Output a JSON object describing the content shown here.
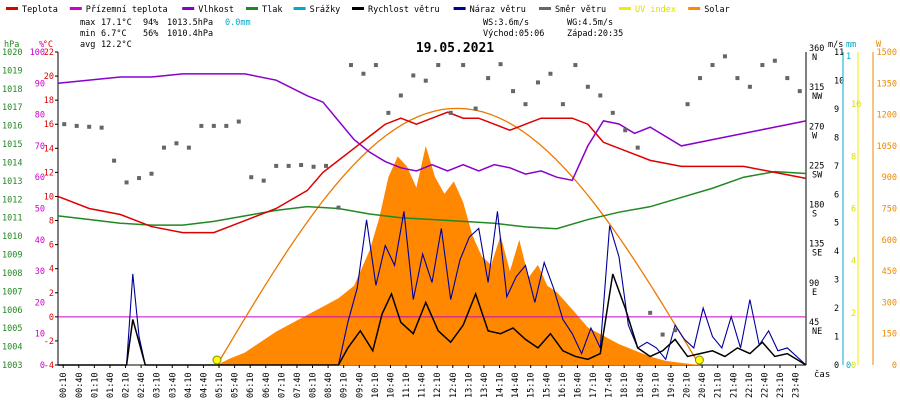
{
  "title": "19.05.2021",
  "legend": [
    {
      "label": "Teplota",
      "color": "#dd0000"
    },
    {
      "label": "Přízemní teplota",
      "color": "#cc00cc"
    },
    {
      "label": "Vlhkost",
      "color": "#8800cc"
    },
    {
      "label": "Tlak",
      "color": "#228822"
    },
    {
      "label": "Srážky",
      "color": "#00aacc"
    },
    {
      "label": "Rychlost větru",
      "color": "#000000"
    },
    {
      "label": "Náraz větru",
      "color": "#000099"
    },
    {
      "label": "Směr větru",
      "color": "#666666"
    },
    {
      "label": "UV index",
      "color": "#eeee00"
    },
    {
      "label": "Solar",
      "color": "#ff8800"
    }
  ],
  "stats": {
    "max_label": "max",
    "max_temp": "17.1°C",
    "max_hum": "94%",
    "max_press": "1013.5hPa",
    "precip": "0.0mm",
    "min_label": "min",
    "min_temp": "6.7°C",
    "min_hum": "56%",
    "min_press": "1010.4hPa",
    "avg_label": "avg",
    "avg_temp": "12.2°C",
    "ws": "WS:3.6m/s",
    "wg": "WG:4.5m/s",
    "sunrise": "Východ:05:06",
    "sunset": "Západ:20:35"
  },
  "axis_units": {
    "hpa": "hPa",
    "pct": "%",
    "degc": "°C",
    "ms": "m/s",
    "mm": "mm",
    "w": "W",
    "time": "čas"
  },
  "colors": {
    "temp": "#dd0000",
    "humidity": "#8800cc",
    "pressure": "#228822",
    "wind_speed": "#000000",
    "gust": "#000099",
    "direction": "#666666",
    "solar_fill": "#ff8800",
    "solar_curve": "#ee7700",
    "rain_axis": "#00aacc",
    "solar_axis": "#ee8800",
    "uv": "#eeee00",
    "zero_line": "#cc00cc",
    "pressure_axis": "#228822",
    "pct_axis": "#cc00cc",
    "temp_axis": "#dd0000"
  },
  "chart_data": {
    "type": "line",
    "x_ticks": [
      "00:10",
      "00:40",
      "01:10",
      "01:40",
      "02:10",
      "02:40",
      "03:10",
      "03:40",
      "04:10",
      "04:40",
      "05:10",
      "05:40",
      "06:10",
      "06:40",
      "07:10",
      "07:40",
      "08:10",
      "08:40",
      "09:10",
      "09:40",
      "10:10",
      "10:40",
      "11:10",
      "11:40",
      "12:10",
      "12:40",
      "13:10",
      "13:40",
      "14:10",
      "14:40",
      "15:10",
      "15:40",
      "16:10",
      "16:40",
      "17:10",
      "17:40",
      "18:10",
      "18:40",
      "19:10",
      "19:40",
      "20:10",
      "20:40",
      "21:10",
      "21:40",
      "22:10",
      "22:40",
      "23:10",
      "23:40"
    ],
    "y_ticks": {
      "pressure_hpa": [
        1003,
        1004,
        1005,
        1006,
        1007,
        1008,
        1009,
        1010,
        1011,
        1012,
        1013,
        1014,
        1015,
        1016,
        1017,
        1018,
        1019,
        1020
      ],
      "humidity_pct": [
        0,
        10,
        20,
        30,
        40,
        50,
        60,
        70,
        80,
        90,
        100
      ],
      "temperature_c": [
        -4,
        -2,
        0,
        2,
        4,
        6,
        8,
        10,
        12,
        14,
        16,
        18,
        20,
        22
      ],
      "wind_ms": [
        0,
        1,
        2,
        3,
        4,
        5,
        6,
        7,
        8,
        9,
        10,
        11
      ],
      "rain_mm": [
        0,
        1
      ],
      "solar_w": [
        0,
        150,
        300,
        450,
        600,
        750,
        900,
        1050,
        1200,
        1350,
        1500
      ],
      "uv_index": [
        0,
        2,
        4,
        6,
        8,
        10
      ],
      "direction": [
        {
          "v": 0,
          "l": ""
        },
        {
          "v": 45,
          "l": "45\nNE"
        },
        {
          "v": 90,
          "l": "90\nE"
        },
        {
          "v": 135,
          "l": "135\nSE"
        },
        {
          "v": 180,
          "l": "180\nS"
        },
        {
          "v": 225,
          "l": "225\nSW"
        },
        {
          "v": 270,
          "l": "270\nW"
        },
        {
          "v": 315,
          "l": "315\nNW"
        },
        {
          "v": 360,
          "l": "360\nN"
        }
      ]
    },
    "ranges": {
      "temp": [
        -4,
        22
      ],
      "pct": [
        0,
        100
      ],
      "pressure": [
        1003,
        1020
      ],
      "wind": [
        0,
        11
      ],
      "solar": [
        0,
        1500
      ],
      "direction": [
        0,
        360
      ]
    },
    "grid": false,
    "series": [
      {
        "name": "Teplota",
        "unit": "°C",
        "hours": [
          0,
          1,
          2,
          3,
          4,
          5,
          6,
          7,
          8,
          8.5,
          9,
          9.5,
          10,
          10.5,
          11,
          11.5,
          12,
          12.5,
          13,
          13.5,
          14,
          14.5,
          15,
          15.5,
          16,
          16.5,
          17,
          17.5,
          18,
          18.5,
          19,
          20,
          21,
          22,
          23,
          24
        ],
        "values": [
          10,
          9,
          8.5,
          7.5,
          7,
          7,
          8,
          9,
          10.5,
          12,
          13,
          14,
          15,
          16,
          16.5,
          16,
          16.5,
          17,
          16.5,
          16.5,
          16,
          15.5,
          16,
          16.5,
          16.5,
          16.5,
          16,
          14.5,
          14,
          13.5,
          13,
          12.5,
          12.5,
          12.5,
          12,
          11.5
        ]
      },
      {
        "name": "Vlhkost",
        "unit": "%",
        "hours": [
          0,
          1,
          2,
          3,
          4,
          5,
          6,
          7,
          8,
          8.5,
          9,
          9.5,
          10,
          10.5,
          11,
          11.5,
          12,
          12.5,
          13,
          13.5,
          14,
          14.5,
          15,
          15.5,
          16,
          16.5,
          17,
          17.5,
          18,
          18.5,
          19,
          20,
          21,
          22,
          23,
          24
        ],
        "values": [
          90,
          91,
          92,
          92,
          93,
          93,
          93,
          91,
          86,
          84,
          78,
          72,
          68,
          65,
          63,
          62,
          64,
          62,
          64,
          62,
          64,
          63,
          61,
          62,
          60,
          59,
          70,
          78,
          77,
          74,
          76,
          70,
          72,
          74,
          76,
          78
        ]
      },
      {
        "name": "Tlak",
        "unit": "hPa",
        "hours": [
          0,
          1,
          2,
          3,
          4,
          5,
          6,
          7,
          8,
          9,
          10,
          11,
          12,
          13,
          14,
          15,
          16,
          17,
          18,
          19,
          20,
          21,
          22,
          23,
          24
        ],
        "values": [
          1011.1,
          1010.9,
          1010.7,
          1010.6,
          1010.6,
          1010.8,
          1011.1,
          1011.4,
          1011.6,
          1011.5,
          1011.2,
          1011.0,
          1010.9,
          1010.8,
          1010.7,
          1010.5,
          1010.4,
          1010.9,
          1011.3,
          1011.6,
          1012.1,
          1012.6,
          1013.2,
          1013.5,
          1013.4
        ]
      },
      {
        "name": "Rychlost větru",
        "unit": "m/s",
        "hours": [
          0,
          2.2,
          2.4,
          2.6,
          2.8,
          9.0,
          9.3,
          9.7,
          10.1,
          10.4,
          10.7,
          11.0,
          11.4,
          11.8,
          12.2,
          12.6,
          13.0,
          13.4,
          13.8,
          14.2,
          14.6,
          15.0,
          15.4,
          15.8,
          16.2,
          16.6,
          17.0,
          17.4,
          17.8,
          18.2,
          18.6,
          19.0,
          19.4,
          19.8,
          20.2,
          20.6,
          21.0,
          21.4,
          21.8,
          22.2,
          22.6,
          23.0,
          23.4,
          24
        ],
        "values": [
          0,
          0,
          1.6,
          0.8,
          0,
          0,
          0.6,
          1.2,
          0.5,
          1.8,
          2.5,
          1.5,
          1.1,
          2.2,
          1.2,
          0.8,
          1.4,
          2.5,
          1.2,
          1.1,
          1.3,
          0.9,
          0.6,
          1.1,
          0.5,
          0.3,
          0.2,
          0.4,
          3.2,
          2.0,
          0.6,
          0.3,
          0.5,
          0.9,
          0.3,
          0.4,
          0.5,
          0.3,
          0.6,
          0.4,
          0.8,
          0.3,
          0.4,
          0
        ]
      },
      {
        "name": "Náraz větru",
        "unit": "m/s",
        "hours": [
          0,
          2.2,
          2.4,
          2.6,
          2.8,
          9.0,
          9.3,
          9.6,
          9.9,
          10.2,
          10.5,
          10.8,
          11.1,
          11.4,
          11.7,
          12.0,
          12.3,
          12.6,
          12.9,
          13.2,
          13.5,
          13.8,
          14.1,
          14.4,
          14.7,
          15.0,
          15.3,
          15.6,
          15.9,
          16.2,
          16.5,
          16.8,
          17.1,
          17.4,
          17.7,
          18.0,
          18.3,
          18.6,
          18.9,
          19.2,
          19.5,
          19.8,
          20.1,
          20.4,
          20.7,
          21.0,
          21.3,
          21.6,
          21.9,
          22.2,
          22.5,
          22.8,
          23.1,
          23.4,
          24
        ],
        "values": [
          0,
          0,
          3.2,
          1.0,
          0,
          0,
          1.5,
          2.7,
          5.1,
          2.8,
          4.2,
          3.5,
          5.4,
          2.3,
          3.9,
          2.9,
          4.8,
          2.3,
          3.7,
          4.5,
          4.8,
          2.9,
          5.4,
          2.4,
          3.1,
          3.5,
          2.2,
          3.6,
          2.7,
          1.6,
          1.1,
          0.4,
          1.3,
          0.6,
          4.9,
          3.8,
          1.4,
          0.6,
          0.8,
          0.6,
          0.2,
          1.4,
          0.9,
          0.6,
          2.0,
          1.0,
          0.6,
          1.7,
          0.6,
          2.3,
          0.7,
          1.2,
          0.5,
          0.6,
          0
        ]
      },
      {
        "name": "Směr větru",
        "unit": "°",
        "hours": [
          0.2,
          0.6,
          1.0,
          1.4,
          1.8,
          2.2,
          2.6,
          3.0,
          3.4,
          3.8,
          4.2,
          4.6,
          5.0,
          5.4,
          5.8,
          6.2,
          6.6,
          7.0,
          7.4,
          7.8,
          8.2,
          8.6,
          9.0,
          9.4,
          9.8,
          10.2,
          10.6,
          11.0,
          11.4,
          11.8,
          12.2,
          12.6,
          13.0,
          13.4,
          13.8,
          14.2,
          14.6,
          15.0,
          15.4,
          15.8,
          16.2,
          16.6,
          17.0,
          17.4,
          17.8,
          18.2,
          18.6,
          19.0,
          19.4,
          19.8,
          20.2,
          20.6,
          21.0,
          21.4,
          21.8,
          22.2,
          22.6,
          23.0,
          23.4,
          23.8
        ],
        "values": [
          277,
          275,
          274,
          273,
          235,
          210,
          215,
          220,
          250,
          255,
          250,
          275,
          275,
          275,
          280,
          216,
          212,
          229,
          229,
          230,
          228,
          229,
          181,
          345,
          335,
          345,
          290,
          310,
          333,
          327,
          345,
          290,
          345,
          295,
          330,
          346,
          315,
          300,
          325,
          335,
          300,
          345,
          320,
          310,
          290,
          270,
          250,
          60,
          35,
          40,
          300,
          330,
          345,
          355,
          330,
          320,
          345,
          350,
          330,
          315
        ]
      },
      {
        "name": "Solar",
        "unit": "W",
        "hours": [
          0,
          5.1,
          5.5,
          6,
          6.5,
          7,
          7.5,
          8,
          8.5,
          9,
          9.5,
          10,
          10.3,
          10.6,
          10.9,
          11.2,
          11.5,
          11.8,
          12.1,
          12.4,
          12.7,
          13,
          13.3,
          13.6,
          13.9,
          14.2,
          14.5,
          14.8,
          15.1,
          15.4,
          15.7,
          16,
          16.3,
          16.6,
          17,
          17.5,
          18,
          18.5,
          19,
          19.5,
          20,
          20.6,
          24
        ],
        "values": [
          0,
          0,
          30,
          60,
          110,
          160,
          200,
          240,
          280,
          320,
          380,
          550,
          700,
          900,
          1000,
          950,
          850,
          1050,
          900,
          820,
          880,
          780,
          620,
          520,
          480,
          620,
          450,
          600,
          420,
          480,
          380,
          350,
          300,
          250,
          180,
          140,
          100,
          70,
          40,
          20,
          10,
          0,
          0
        ]
      },
      {
        "name": "Solar (teoretické)",
        "unit": "W",
        "peak_w": 1230,
        "peak_hour": 12.8,
        "sunrise_hour": 5.1,
        "sunset_hour": 20.58
      },
      {
        "name": "Rain",
        "unit": "mm",
        "values": [
          0
        ]
      }
    ]
  }
}
